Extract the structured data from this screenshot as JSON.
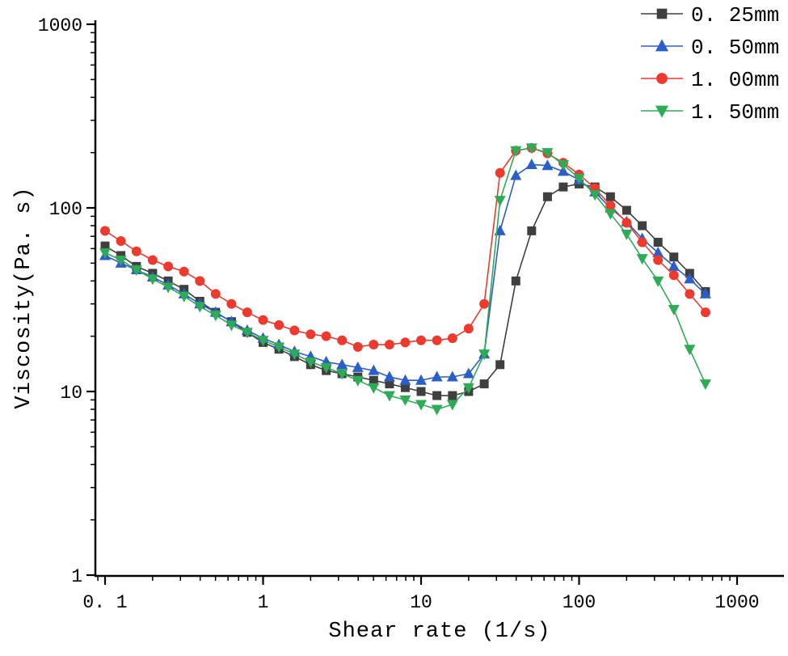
{
  "chart_data": {
    "type": "line",
    "title": "",
    "xlabel": "Shear rate (1/s)",
    "ylabel": "Viscosity(Pa. s)",
    "x_scale": "log",
    "y_scale": "log",
    "xlim": [
      0.09,
      2000
    ],
    "ylim": [
      1,
      1000
    ],
    "grid": false,
    "legend_position": "top-right",
    "axis_color": "#000000",
    "x_ticks": [
      0.1,
      1,
      10,
      100,
      1000
    ],
    "x_tick_labels": [
      "0. 1",
      "1",
      "10",
      "100",
      "1000"
    ],
    "y_ticks": [
      1,
      10,
      100,
      1000
    ],
    "y_tick_labels": [
      "1",
      "10",
      "100",
      "1000"
    ],
    "x": [
      0.1,
      0.126,
      0.158,
      0.2,
      0.251,
      0.316,
      0.398,
      0.501,
      0.631,
      0.794,
      1.0,
      1.26,
      1.58,
      2.0,
      2.51,
      3.16,
      3.98,
      5.01,
      6.31,
      7.94,
      10.0,
      12.6,
      15.8,
      20.0,
      25.1,
      31.6,
      39.8,
      50.1,
      63.1,
      79.4,
      100.0,
      126.0,
      158.0,
      200.0,
      251.0,
      316.0,
      398.0,
      501.0,
      631.0
    ],
    "series": [
      {
        "name": "0. 25mm",
        "marker": "square",
        "color": "#3f3f3f",
        "values": [
          62,
          55,
          48,
          44,
          40,
          36,
          31,
          27,
          24,
          21,
          18.5,
          17,
          15.5,
          14,
          13,
          12.5,
          12,
          11.5,
          11,
          10.5,
          10,
          9.5,
          9.5,
          10,
          11,
          14,
          40,
          75,
          115,
          130,
          135,
          130,
          115,
          97,
          80,
          65,
          54,
          44,
          35
        ]
      },
      {
        "name": "0. 50mm",
        "marker": "triangle-up",
        "color": "#2b5fc7",
        "values": [
          55,
          50,
          46,
          42,
          38,
          34,
          30,
          27,
          24,
          21.5,
          19.5,
          18,
          16.5,
          15.5,
          14.5,
          14,
          13.5,
          13,
          12,
          11.5,
          11.5,
          12,
          12,
          12.5,
          16,
          75,
          150,
          172,
          170,
          158,
          142,
          122,
          100,
          84,
          68,
          57,
          48,
          41,
          34
        ]
      },
      {
        "name": "1. 00mm",
        "marker": "circle",
        "color": "#ed3a2f",
        "values": [
          75,
          66,
          58,
          52,
          48,
          45,
          40,
          34,
          30,
          27,
          24.5,
          23,
          21.5,
          20.5,
          20,
          19,
          17.5,
          18,
          18,
          18.5,
          19,
          19,
          19.5,
          22,
          30,
          155,
          205,
          212,
          198,
          176,
          152,
          128,
          103,
          83,
          65,
          52,
          43,
          34,
          27
        ]
      },
      {
        "name": "1. 50mm",
        "marker": "triangle-down",
        "color": "#2fab58",
        "values": [
          57,
          52,
          46,
          41,
          37,
          33,
          29,
          26,
          23,
          21,
          19,
          17.5,
          16,
          14.5,
          13.5,
          12.5,
          11.5,
          10.5,
          9.5,
          9,
          8.5,
          8,
          8.5,
          10.5,
          16,
          110,
          205,
          212,
          200,
          172,
          145,
          118,
          93,
          72,
          53,
          40,
          28,
          17,
          11
        ]
      }
    ]
  }
}
